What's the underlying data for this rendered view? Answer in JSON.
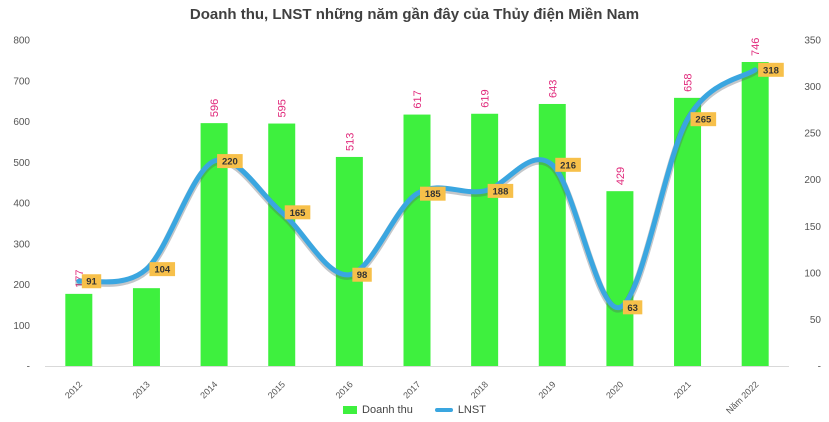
{
  "chart_data": {
    "type": "bar",
    "title": "Doanh thu, LNST những năm gần đây của Thủy điện Miền Nam",
    "categories": [
      "2012",
      "2013",
      "2014",
      "2015",
      "2016",
      "2017",
      "2018",
      "2019",
      "2020",
      "2021",
      "Năm 2022"
    ],
    "series": [
      {
        "name": "Doanh thu",
        "type": "bar",
        "axis": "left",
        "values": [
          177,
          191,
          596,
          595,
          513,
          617,
          619,
          643,
          429,
          658,
          746
        ],
        "labels": [
          "177",
          "",
          "596",
          "595",
          "513",
          "617",
          "619",
          "643",
          "429",
          "658",
          "746"
        ],
        "label_color": "#e0297b",
        "color": "#3ef03e"
      },
      {
        "name": "LNST",
        "type": "line",
        "axis": "right",
        "values": [
          91,
          104,
          220,
          165,
          98,
          185,
          188,
          216,
          63,
          265,
          318
        ],
        "color": "#3aa6e0",
        "label_bg": "#f7c04a"
      }
    ],
    "y_left": {
      "min": 0,
      "max": 800,
      "ticks": [
        "-",
        "100",
        "200",
        "300",
        "400",
        "500",
        "600",
        "700",
        "800"
      ]
    },
    "y_right": {
      "min": 0,
      "max": 350,
      "ticks": [
        "-",
        "50",
        "100",
        "150",
        "200",
        "250",
        "300",
        "350"
      ]
    },
    "grid": false,
    "legend_position": "bottom"
  }
}
